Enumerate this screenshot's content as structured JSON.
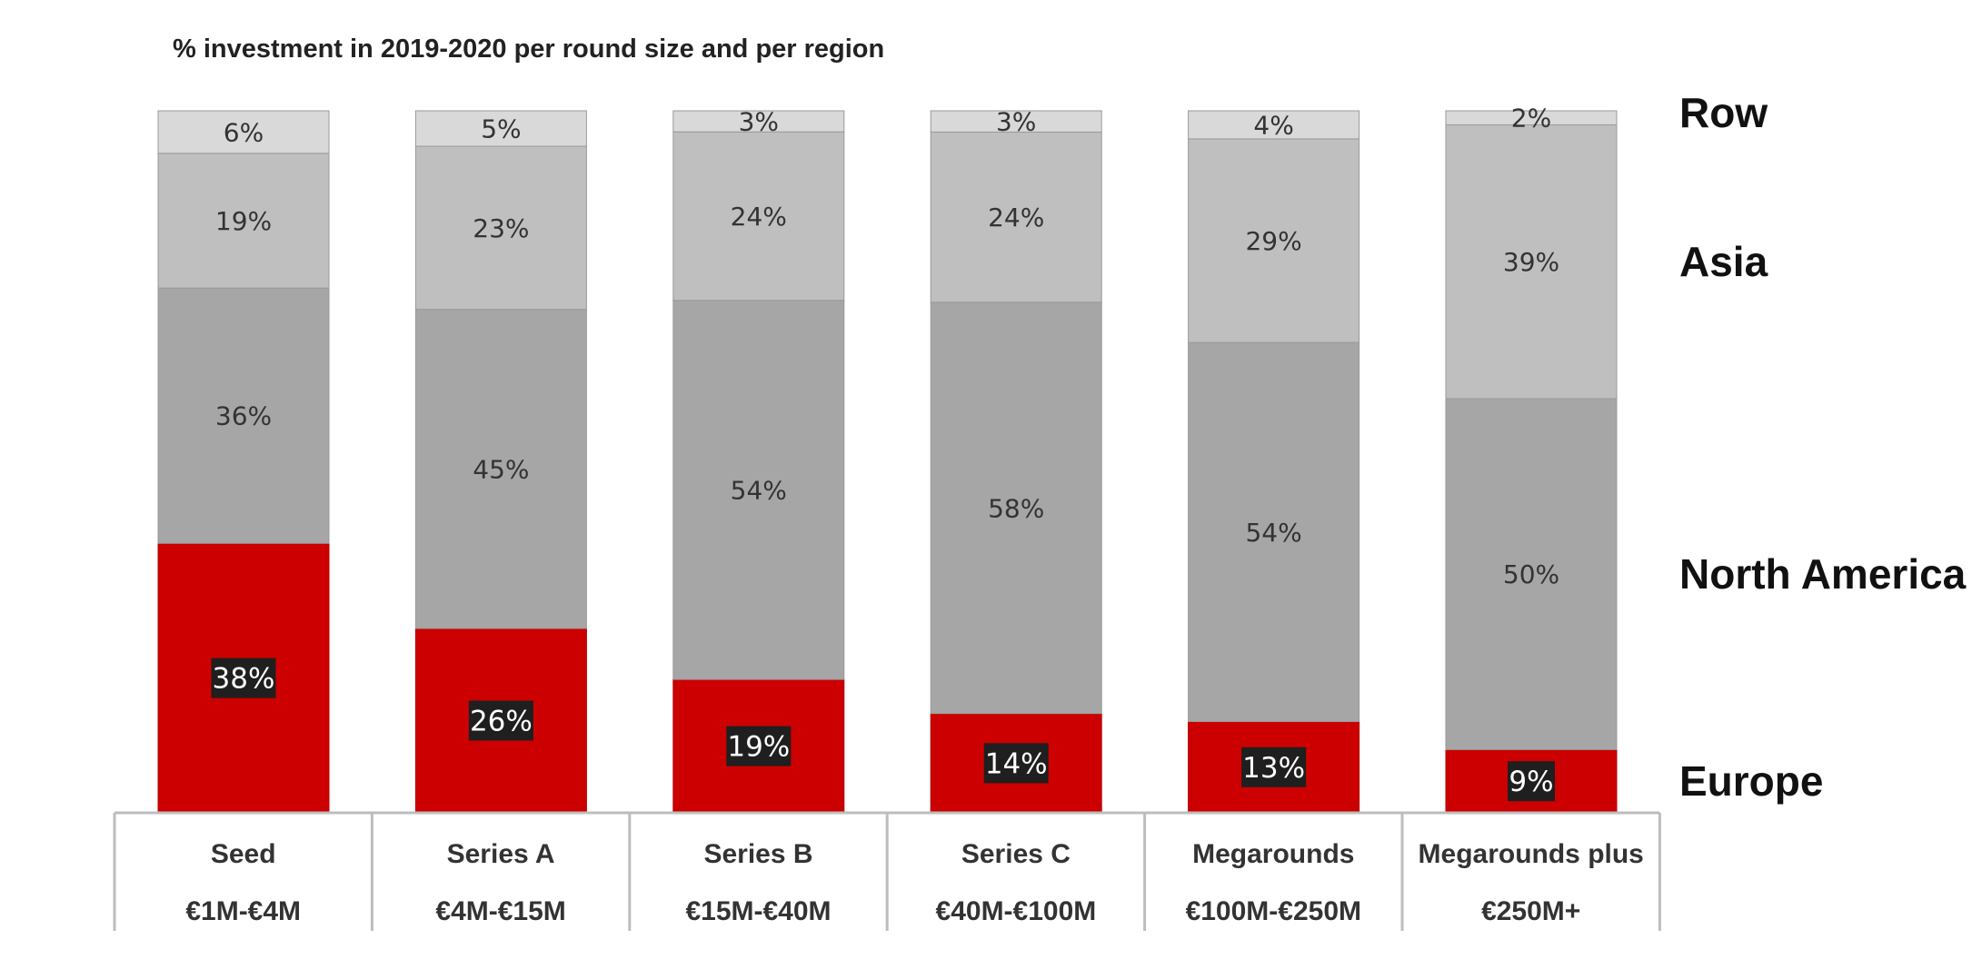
{
  "chart_data": {
    "type": "bar",
    "stacked": true,
    "title": "% investment in 2019-2020 per round size and per region",
    "categories": [
      "Seed",
      "Series A",
      "Series B",
      "Series C",
      "Megarounds",
      "Megarounds plus"
    ],
    "category_ranges": [
      "€1M-€4M",
      "€4M-€15M",
      "€15M-€40M",
      "€40M-€100M",
      "€100M-€250M",
      "€250M+"
    ],
    "series": [
      {
        "name": "Europe",
        "color": "#cc0000",
        "values": [
          38,
          26,
          19,
          14,
          13,
          9
        ]
      },
      {
        "name": "North America",
        "color": "#a6a6a6",
        "values": [
          36,
          45,
          54,
          58,
          54,
          50
        ]
      },
      {
        "name": "Asia",
        "color": "#bfbfbf",
        "values": [
          19,
          23,
          24,
          24,
          29,
          39
        ]
      },
      {
        "name": "Row",
        "color": "#d9d9d9",
        "values": [
          6,
          5,
          3,
          3,
          4,
          2
        ]
      }
    ],
    "value_suffix": "%",
    "legend_placement": "right",
    "grid": false
  }
}
